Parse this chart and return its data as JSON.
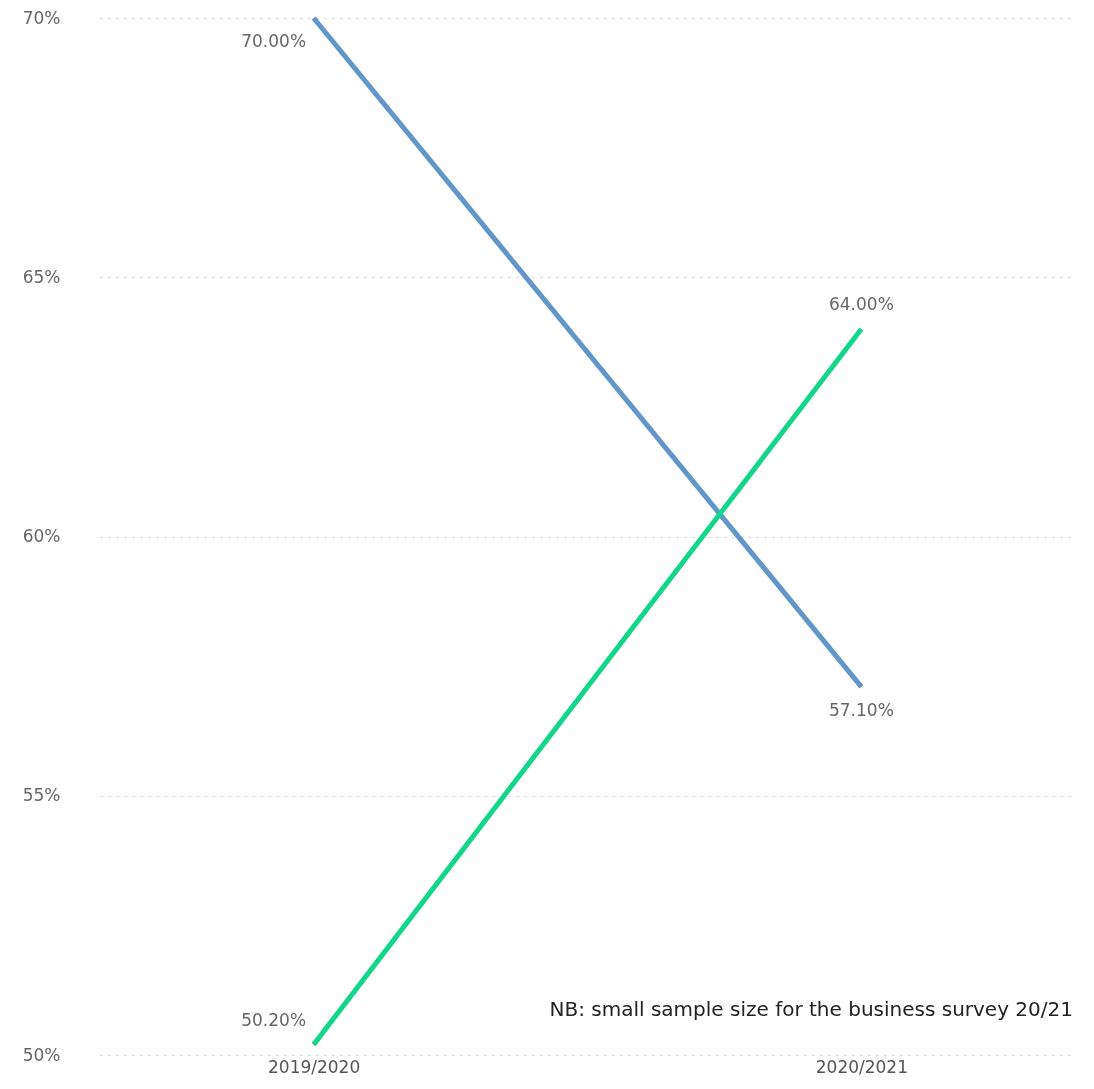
{
  "chart_data": {
    "type": "line",
    "categories": [
      "2019/2020",
      "2020/2021"
    ],
    "series": [
      {
        "color": "#6096c8",
        "values": [
          70,
          57.1
        ],
        "value_labels": [
          "70.00%",
          "57.10%"
        ]
      },
      {
        "color": "#12d68a",
        "values": [
          50.2,
          64
        ],
        "value_labels": [
          "50.20%",
          "64.00%"
        ]
      }
    ],
    "ylim": [
      50,
      70
    ],
    "yticks": [
      {
        "value": 50,
        "label": "50%"
      },
      {
        "value": 55,
        "label": "55%"
      },
      {
        "value": 60,
        "label": "60%"
      },
      {
        "value": 65,
        "label": "65%"
      },
      {
        "value": 70,
        "label": "70%"
      }
    ],
    "grid": "y",
    "legend": false,
    "marker": "none",
    "line_style": "solid",
    "annotations": [
      "NB: small sample size for the business survey 20/21"
    ]
  }
}
